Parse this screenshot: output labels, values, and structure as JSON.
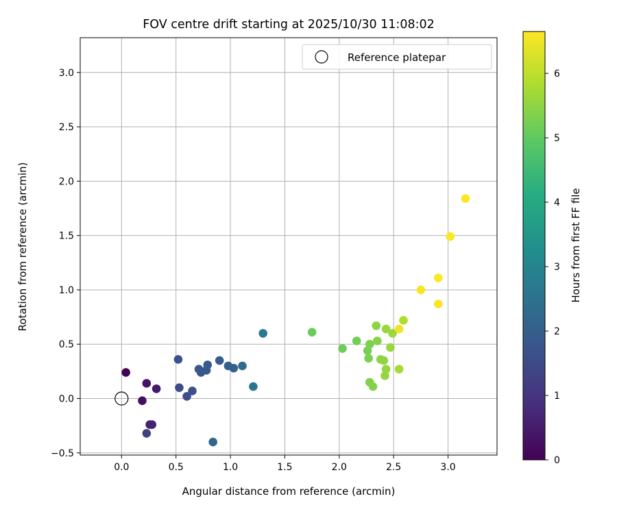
{
  "chart_data": {
    "type": "scatter",
    "title": "FOV centre drift starting at 2025/10/30 11:08:02",
    "xlabel": "Angular distance from reference (arcmin)",
    "ylabel": "Rotation from reference (arcmin)",
    "xlim": [
      -0.38,
      3.45
    ],
    "ylim": [
      -0.52,
      3.32
    ],
    "xticks": [
      0.0,
      0.5,
      1.0,
      1.5,
      2.0,
      2.5,
      3.0
    ],
    "xtick_labels": [
      "0.0",
      "0.5",
      "1.0",
      "1.5",
      "2.0",
      "2.5",
      "3.0"
    ],
    "yticks": [
      -0.5,
      0.0,
      0.5,
      1.0,
      1.5,
      2.0,
      2.5,
      3.0
    ],
    "ytick_labels": [
      "−0.5",
      "0.0",
      "0.5",
      "1.0",
      "1.5",
      "2.0",
      "2.5",
      "3.0"
    ],
    "grid": true,
    "legend": {
      "position": "top-right",
      "entries": [
        {
          "label": "Reference platepar",
          "marker": "open-circle"
        }
      ]
    },
    "reference_point": {
      "x": 0.0,
      "y": 0.0
    },
    "colorbar": {
      "label": "Hours from first FF file",
      "colormap": "viridis",
      "range": [
        0,
        6.65
      ],
      "ticks": [
        0,
        1,
        2,
        3,
        4,
        5,
        6
      ],
      "tick_labels": [
        "0",
        "1",
        "2",
        "3",
        "4",
        "5",
        "6"
      ]
    },
    "series": [
      {
        "name": "FOV centre",
        "points": [
          {
            "x": 0.04,
            "y": 0.24,
            "hours": 0.05
          },
          {
            "x": 0.19,
            "y": -0.02,
            "hours": 0.25
          },
          {
            "x": 0.23,
            "y": 0.14,
            "hours": 0.35
          },
          {
            "x": 0.32,
            "y": 0.09,
            "hours": 0.45
          },
          {
            "x": 0.26,
            "y": -0.24,
            "hours": 0.55
          },
          {
            "x": 0.28,
            "y": -0.24,
            "hours": 0.65
          },
          {
            "x": 0.23,
            "y": -0.32,
            "hours": 1.25
          },
          {
            "x": 0.53,
            "y": 0.1,
            "hours": 1.55
          },
          {
            "x": 0.6,
            "y": 0.02,
            "hours": 1.6
          },
          {
            "x": 0.65,
            "y": 0.07,
            "hours": 1.65
          },
          {
            "x": 0.52,
            "y": 0.36,
            "hours": 1.7
          },
          {
            "x": 0.71,
            "y": 0.27,
            "hours": 1.75
          },
          {
            "x": 0.73,
            "y": 0.24,
            "hours": 1.8
          },
          {
            "x": 0.78,
            "y": 0.26,
            "hours": 1.85
          },
          {
            "x": 0.79,
            "y": 0.31,
            "hours": 1.9
          },
          {
            "x": 0.9,
            "y": 0.35,
            "hours": 1.95
          },
          {
            "x": 0.98,
            "y": 0.3,
            "hours": 2.05
          },
          {
            "x": 1.03,
            "y": 0.28,
            "hours": 2.1
          },
          {
            "x": 0.84,
            "y": -0.4,
            "hours": 2.2
          },
          {
            "x": 1.11,
            "y": 0.3,
            "hours": 2.35
          },
          {
            "x": 1.21,
            "y": 0.11,
            "hours": 2.55
          },
          {
            "x": 1.3,
            "y": 0.6,
            "hours": 2.7
          },
          {
            "x": 1.75,
            "y": 0.61,
            "hours": 5.1
          },
          {
            "x": 2.03,
            "y": 0.46,
            "hours": 5.15
          },
          {
            "x": 2.16,
            "y": 0.53,
            "hours": 5.2
          },
          {
            "x": 2.26,
            "y": 0.44,
            "hours": 5.25
          },
          {
            "x": 2.27,
            "y": 0.37,
            "hours": 5.3
          },
          {
            "x": 2.28,
            "y": 0.5,
            "hours": 5.3
          },
          {
            "x": 2.28,
            "y": 0.15,
            "hours": 5.35
          },
          {
            "x": 2.31,
            "y": 0.11,
            "hours": 5.4
          },
          {
            "x": 2.34,
            "y": 0.67,
            "hours": 5.45
          },
          {
            "x": 2.35,
            "y": 0.53,
            "hours": 5.4
          },
          {
            "x": 2.38,
            "y": 0.36,
            "hours": 5.5
          },
          {
            "x": 2.41,
            "y": 0.35,
            "hours": 5.5
          },
          {
            "x": 2.42,
            "y": 0.21,
            "hours": 5.55
          },
          {
            "x": 2.43,
            "y": 0.27,
            "hours": 5.55
          },
          {
            "x": 2.43,
            "y": 0.64,
            "hours": 5.6
          },
          {
            "x": 2.47,
            "y": 0.47,
            "hours": 5.6
          },
          {
            "x": 2.49,
            "y": 0.6,
            "hours": 5.65
          },
          {
            "x": 2.55,
            "y": 0.27,
            "hours": 5.75
          },
          {
            "x": 2.59,
            "y": 0.72,
            "hours": 5.85
          },
          {
            "x": 2.55,
            "y": 0.64,
            "hours": 6.5
          },
          {
            "x": 2.75,
            "y": 1.0,
            "hours": 6.6
          },
          {
            "x": 2.91,
            "y": 0.87,
            "hours": 6.6
          },
          {
            "x": 2.91,
            "y": 1.11,
            "hours": 6.62
          },
          {
            "x": 3.02,
            "y": 1.49,
            "hours": 6.62
          },
          {
            "x": 3.16,
            "y": 1.84,
            "hours": 6.65
          }
        ]
      }
    ]
  }
}
